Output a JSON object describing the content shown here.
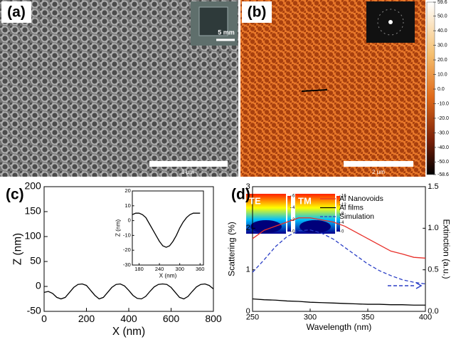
{
  "panels": {
    "a": {
      "label": "(a)",
      "inset_scale": "5 mm",
      "scale_bar": "1 μm"
    },
    "b": {
      "label": "(b)",
      "scale_bar": "2 μm",
      "colorbar": {
        "lim": [
          -58.6,
          59.6
        ],
        "ticks": [
          59.6,
          {
            "value": 50,
            "label": "50.0"
          },
          {
            "value": 40,
            "label": "40.0"
          },
          {
            "value": 30,
            "label": "30.0"
          },
          {
            "value": 20,
            "label": "20.0"
          },
          {
            "value": 10,
            "label": "10.0"
          },
          {
            "value": 0,
            "label": "0.0"
          },
          {
            "value": -10,
            "label": "-10.0"
          },
          {
            "value": -20,
            "label": "-20.0"
          },
          {
            "value": -30,
            "label": "-30.0"
          },
          {
            "value": -40,
            "label": "-40.0"
          },
          {
            "value": -50,
            "label": "-50.0"
          },
          -58.6
        ]
      }
    }
  },
  "chart_data": [
    {
      "type": "line",
      "label": "(c)",
      "xlabel": "X (nm)",
      "ylabel": "Z (nm)",
      "xlim": [
        0,
        800
      ],
      "ylim": [
        -50,
        200
      ],
      "xticks": [
        0,
        200,
        400,
        600,
        800
      ],
      "yticks": [
        -50,
        0,
        50,
        100,
        150,
        200
      ],
      "x": [
        0,
        20,
        40,
        60,
        80,
        100,
        120,
        140,
        160,
        180,
        200,
        220,
        240,
        260,
        280,
        300,
        320,
        340,
        360,
        380,
        400,
        420,
        440,
        460,
        480,
        500,
        520,
        540,
        560,
        580,
        600,
        620,
        640,
        660,
        680,
        700,
        720,
        740,
        760,
        780,
        800
      ],
      "series": [
        {
          "color": "#000000",
          "values": [
            -12,
            -10,
            -14,
            -22,
            -25,
            -22,
            -12,
            -2,
            4,
            5,
            2,
            -8,
            -18,
            -25,
            -22,
            -12,
            -2,
            4,
            5,
            1,
            -8,
            -18,
            -24,
            -25,
            -20,
            -10,
            -1,
            4,
            5,
            4,
            -2,
            -12,
            -22,
            -25,
            -20,
            -10,
            -1,
            4,
            5,
            2,
            -5
          ]
        }
      ],
      "inset": {
        "type": "line",
        "xlabel": "X (nm)",
        "ylabel": "Z (nm)",
        "xlim": [
          160,
          370
        ],
        "ylim": [
          -30,
          20
        ],
        "xticks": [
          180,
          240,
          300,
          360
        ],
        "yticks": [
          -30,
          -20,
          -10,
          0,
          10,
          20
        ],
        "x": [
          160,
          170,
          180,
          190,
          200,
          210,
          220,
          230,
          240,
          250,
          260,
          270,
          280,
          290,
          300,
          310,
          320,
          330,
          340,
          350,
          360
        ],
        "series": [
          {
            "color": "#000000",
            "values": [
              4,
              5,
              5,
              4,
              2,
              -2,
              -6,
              -10,
              -14,
              -17,
              -18,
              -17,
              -14,
              -10,
              -5,
              -1,
              2,
              4,
              5,
              5,
              5
            ]
          }
        ]
      }
    },
    {
      "type": "line",
      "label": "(d)",
      "xlabel": "Wavelength (nm)",
      "ylabel": "Scattering (%)",
      "y2label": "Extinction (a.u.)",
      "xlim": [
        250,
        400
      ],
      "ylim": [
        0,
        3
      ],
      "y2lim": [
        0,
        1.5
      ],
      "xticks": [
        250,
        300,
        350,
        400
      ],
      "yticks": [
        0,
        1,
        2,
        3
      ],
      "y2ticks": [
        {
          "value": 0,
          "label": "0.0"
        },
        0.5,
        {
          "value": 1,
          "label": "1.0"
        },
        1.5
      ],
      "legend": "upper right",
      "x": [
        250,
        260,
        270,
        280,
        290,
        300,
        310,
        320,
        330,
        340,
        350,
        360,
        370,
        380,
        390,
        400
      ],
      "series": [
        {
          "name": "Al Nanovoids",
          "color": "#e8302a",
          "values": [
            1.75,
            1.95,
            2.05,
            2.15,
            2.25,
            2.25,
            2.2,
            2.15,
            2.05,
            1.9,
            1.75,
            1.6,
            1.45,
            1.38,
            1.3,
            1.28
          ]
        },
        {
          "name": "Al films",
          "color": "#000000",
          "values": [
            0.3,
            0.28,
            0.27,
            0.25,
            0.24,
            0.22,
            0.21,
            0.2,
            0.19,
            0.18,
            0.17,
            0.17,
            0.16,
            0.16,
            0.15,
            0.15
          ]
        },
        {
          "name": "Simulation",
          "color": "#2b3fc6",
          "style": "dashed",
          "axis": "y2",
          "values": [
            0.47,
            0.62,
            0.78,
            0.9,
            0.97,
            0.98,
            0.94,
            0.87,
            0.77,
            0.67,
            0.57,
            0.49,
            0.43,
            0.38,
            0.35,
            0.33
          ]
        }
      ],
      "field_maps": [
        {
          "title": "TE",
          "colorbar_ticks": [
            0,
            2,
            4,
            6
          ]
        },
        {
          "title": "TM",
          "colorbar_ticks": [
            0,
            4,
            8,
            12,
            16
          ]
        }
      ]
    }
  ]
}
